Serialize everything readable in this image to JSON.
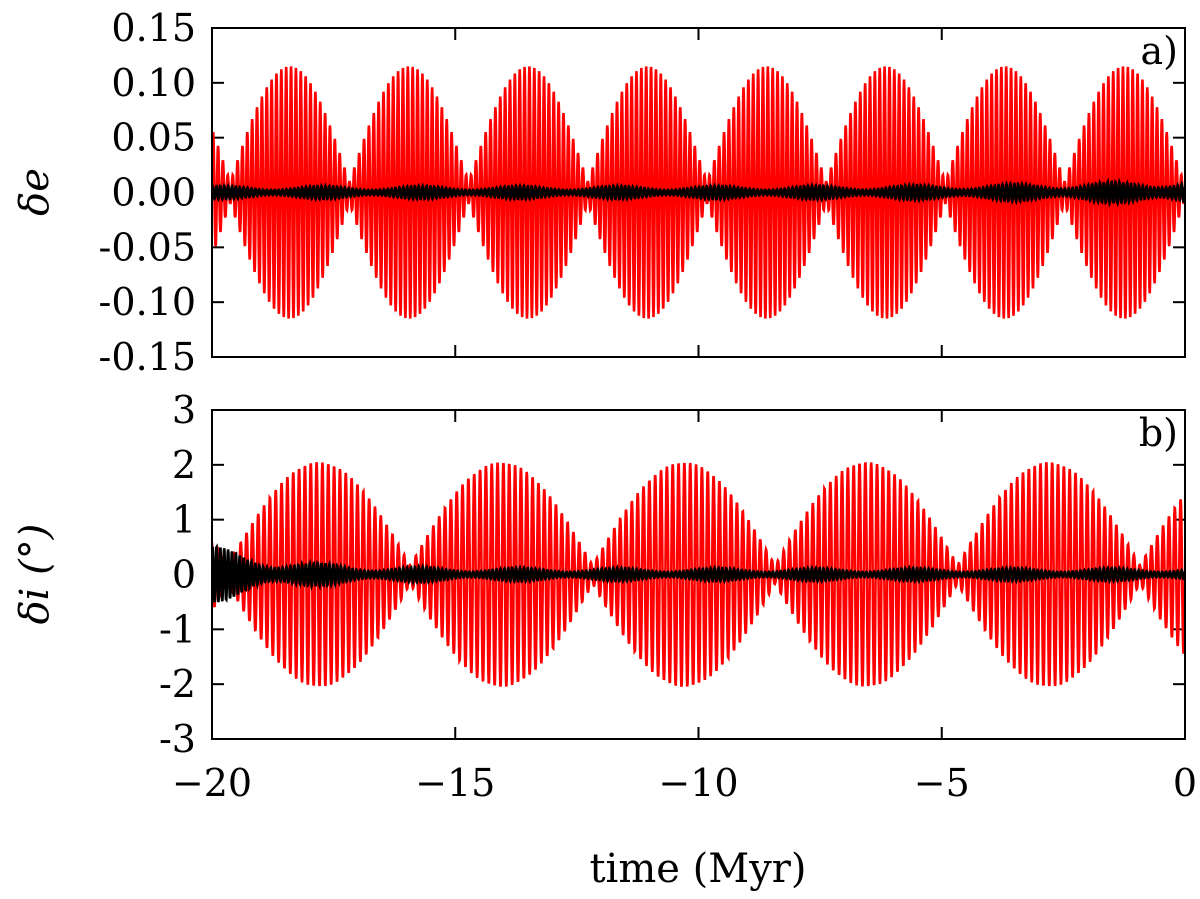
{
  "chart_data": [
    {
      "type": "line",
      "panel": "a)",
      "ylabel": "δe",
      "ylim": [
        -0.15,
        0.15
      ],
      "yticks": [
        "0.15",
        "0.10",
        "0.05",
        "0.00",
        "-0.05",
        "-0.10",
        "-0.15"
      ],
      "xlim": [
        -20,
        0
      ],
      "series": [
        {
          "name": "red",
          "color": "#ff0000",
          "description": "fast oscillation with beating envelope",
          "envelope_peaks_x": [
            -18.4,
            -15.9,
            -13.3,
            -10.9,
            -8.6,
            -6.2,
            -3.8,
            -1.5
          ],
          "envelope_max": 0.115,
          "beat_period": 2.45,
          "fast_period": 0.1
        },
        {
          "name": "black",
          "color": "#000000",
          "description": "small oscillation about zero",
          "amplitude": 0.006,
          "end_amplitude": 0.012,
          "fast_period": 0.08
        }
      ]
    },
    {
      "type": "line",
      "panel": "b)",
      "ylabel": "δi (°)",
      "ylim": [
        -3,
        3
      ],
      "yticks": [
        "3",
        "2",
        "1",
        "0",
        "-1",
        "-2",
        "-3"
      ],
      "xlim": [
        -20,
        0
      ],
      "xticks": [
        "−20",
        "−15",
        "−10",
        "−5",
        "0"
      ],
      "xlabel": "time (Myr)",
      "series": [
        {
          "name": "red",
          "color": "#ff0000",
          "description": "fast oscillation with beating envelope",
          "envelope_peaks_x": [
            -17.8,
            -13.6,
            -9.7,
            -5.9,
            -2.2
          ],
          "envelope_max": 2.05,
          "beat_period": 3.75,
          "fast_period": 0.12
        },
        {
          "name": "black",
          "color": "#000000",
          "description": "oscillation about zero, larger at start",
          "start_amplitude": 0.55,
          "amplitude": 0.12,
          "fast_period": 0.08
        }
      ]
    }
  ]
}
